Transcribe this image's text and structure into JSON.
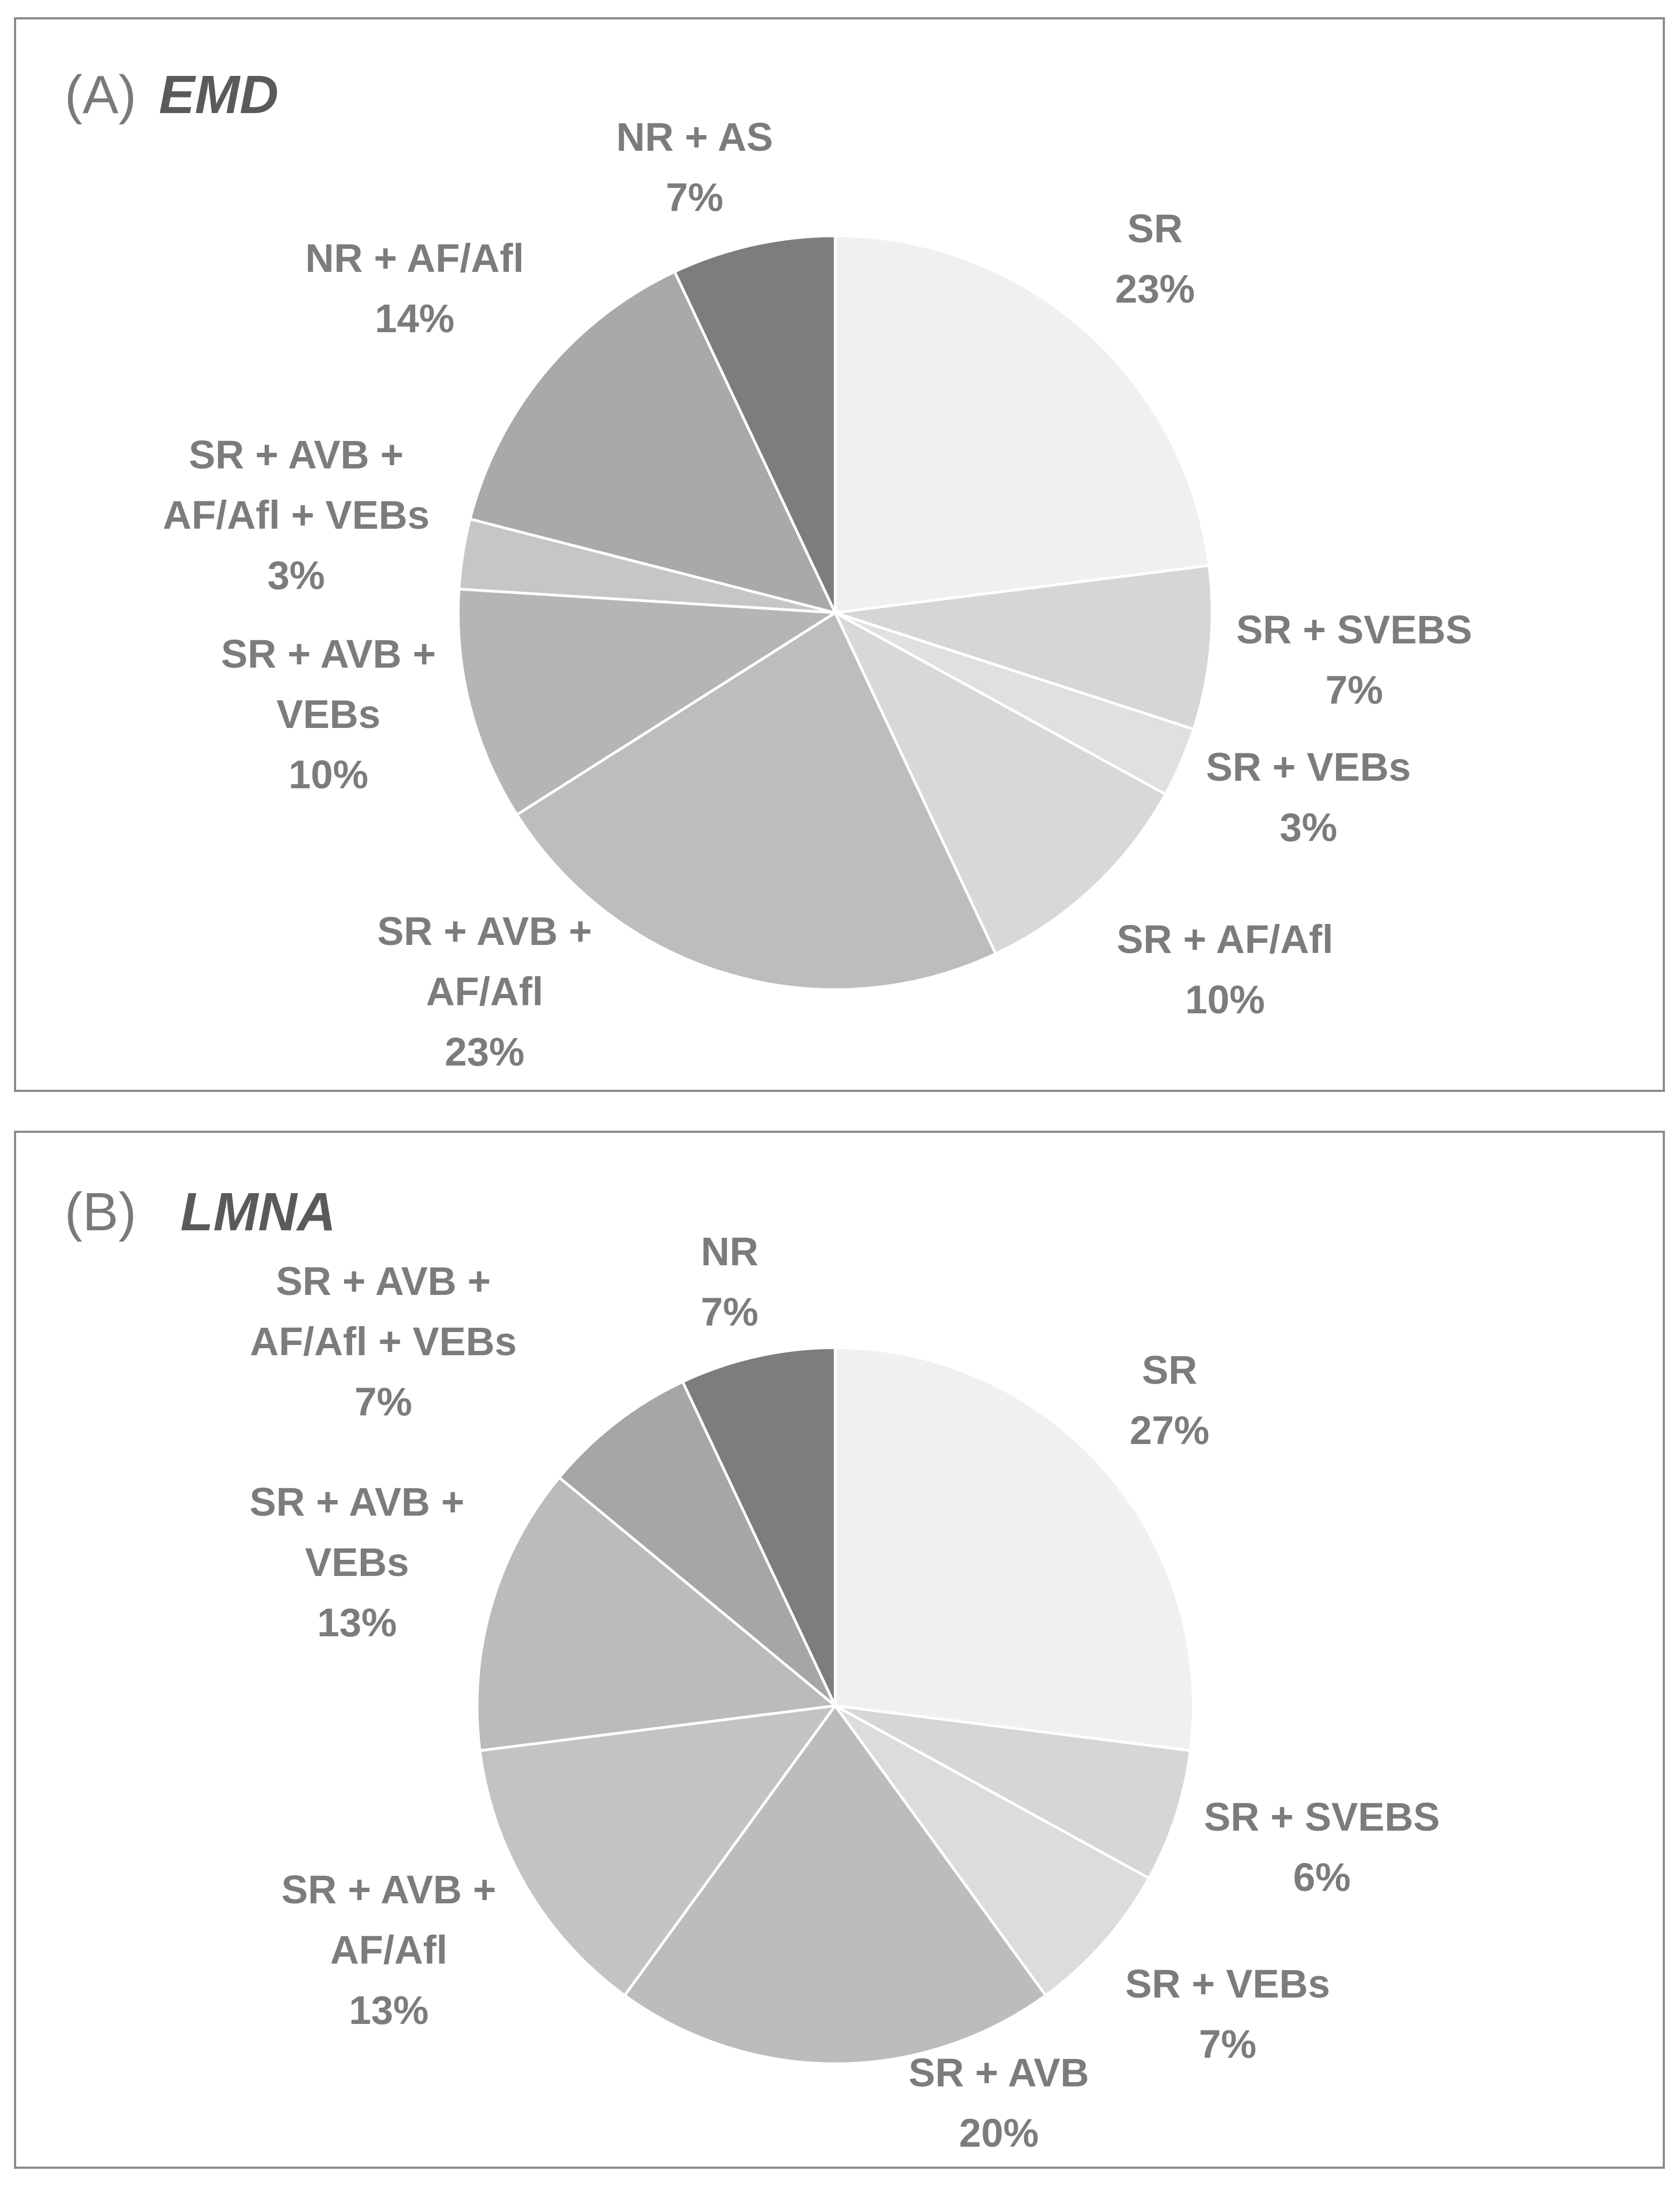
{
  "chart_data": [
    {
      "type": "pie",
      "panel_label": "(A)",
      "title": "EMD",
      "start": "12 o'clock, clockwise",
      "slices": [
        {
          "label": [
            "SR"
          ],
          "value": 23,
          "percent_label": "23%",
          "color": "#f0f0f0"
        },
        {
          "label": [
            "SR + SVEBS"
          ],
          "value": 7,
          "percent_label": "7%",
          "color": "#d6d6d6"
        },
        {
          "label": [
            "SR + VEBs"
          ],
          "value": 3,
          "percent_label": "3%",
          "color": "#e0e0e0"
        },
        {
          "label": [
            "SR + AF/Afl"
          ],
          "value": 10,
          "percent_label": "10%",
          "color": "#d8d8d8"
        },
        {
          "label": [
            "SR + AVB +",
            "AF/Afl"
          ],
          "value": 23,
          "percent_label": "23%",
          "color": "#bdbdbd"
        },
        {
          "label": [
            "SR + AVB +",
            "VEBs"
          ],
          "value": 10,
          "percent_label": "10%",
          "color": "#b5b5b5"
        },
        {
          "label": [
            "SR + AVB +",
            "AF/Afl + VEBs"
          ],
          "value": 3,
          "percent_label": "3%",
          "color": "#c6c6c6"
        },
        {
          "label": [
            "NR + AF/Afl"
          ],
          "value": 14,
          "percent_label": "14%",
          "color": "#a9a9a9"
        },
        {
          "label": [
            "NR + AS"
          ],
          "value": 7,
          "percent_label": "7%",
          "color": "#7d7d7d"
        }
      ]
    },
    {
      "type": "pie",
      "panel_label": "(B)",
      "title": "LMNA",
      "start": "12 o'clock, clockwise",
      "slices": [
        {
          "label": [
            "SR"
          ],
          "value": 27,
          "percent_label": "27%",
          "color": "#f0f0f0"
        },
        {
          "label": [
            "SR + SVEBS"
          ],
          "value": 6,
          "percent_label": "6%",
          "color": "#d6d6d6"
        },
        {
          "label": [
            "SR + VEBs"
          ],
          "value": 7,
          "percent_label": "7%",
          "color": "#dcdcdc"
        },
        {
          "label": [
            "SR + AVB"
          ],
          "value": 20,
          "percent_label": "20%",
          "color": "#bcbcbc"
        },
        {
          "label": [
            "SR + AVB +",
            "AF/Afl"
          ],
          "value": 13,
          "percent_label": "13%",
          "color": "#c3c3c3"
        },
        {
          "label": [
            "SR + AVB +",
            "VEBs"
          ],
          "value": 13,
          "percent_label": "13%",
          "color": "#bbbbbb"
        },
        {
          "label": [
            "SR + AVB +",
            "AF/Afl + VEBs"
          ],
          "value": 7,
          "percent_label": "7%",
          "color": "#a6a6a6"
        },
        {
          "label": [
            "NR"
          ],
          "value": 7,
          "percent_label": "7%",
          "color": "#7d7d7d"
        }
      ]
    }
  ]
}
